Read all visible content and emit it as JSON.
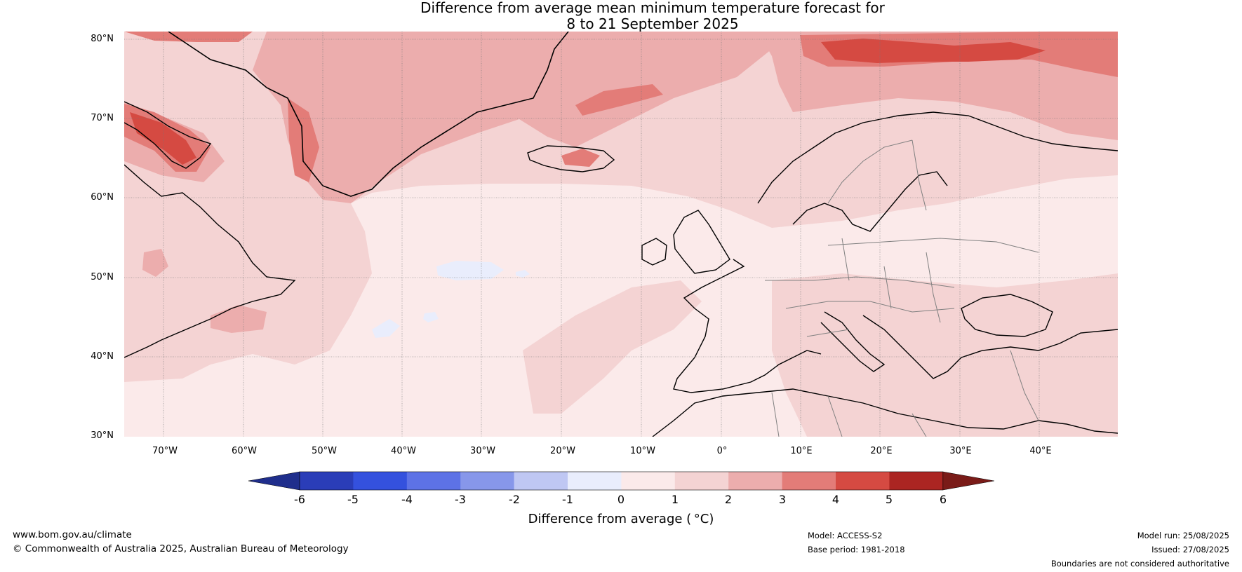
{
  "title": {
    "line1": "Difference from average mean minimum temperature forecast for",
    "line2": "8 to 21 September 2025"
  },
  "map": {
    "region": "North Atlantic and Europe",
    "lat_range_deg": [
      30,
      81
    ],
    "lon_range_deg": [
      -75,
      50
    ],
    "lat_ticks": [
      "80°N",
      "70°N",
      "60°N",
      "50°N",
      "40°N",
      "30°N"
    ],
    "lon_ticks": [
      "70°W",
      "60°W",
      "50°W",
      "40°W",
      "30°W",
      "20°W",
      "10°W",
      "0°",
      "10°E",
      "20°E",
      "30°E",
      "40°E"
    ],
    "gridlines": true,
    "coastline_color": "#000000",
    "border_color": "#808080"
  },
  "colorbar": {
    "label": "Difference from average ( °C)",
    "ticks": [
      "-6",
      "-5",
      "-4",
      "-3",
      "-2",
      "-1",
      "0",
      "1",
      "2",
      "3",
      "4",
      "5",
      "6"
    ],
    "colors": [
      "#1f2e8c",
      "#2a3db8",
      "#3451de",
      "#5d72e6",
      "#8797ea",
      "#bfc7f3",
      "#e9edfc",
      "#fbeaea",
      "#f4d3d3",
      "#ecadad",
      "#e37c78",
      "#d54a42",
      "#ab2522",
      "#7a1b18"
    ],
    "extend": "both"
  },
  "footer": {
    "url": "www.bom.gov.au/climate",
    "copyright": "© Commonwealth of Australia 2025, Australian Bureau of Meteorology",
    "model": "Model: ACCESS-S2",
    "base_period": "Base period: 1981-2018",
    "model_run": "Model run: 25/08/2025",
    "issued": "Issued: 27/08/2025",
    "disclaimer": "Boundaries are not considered authoritative"
  }
}
